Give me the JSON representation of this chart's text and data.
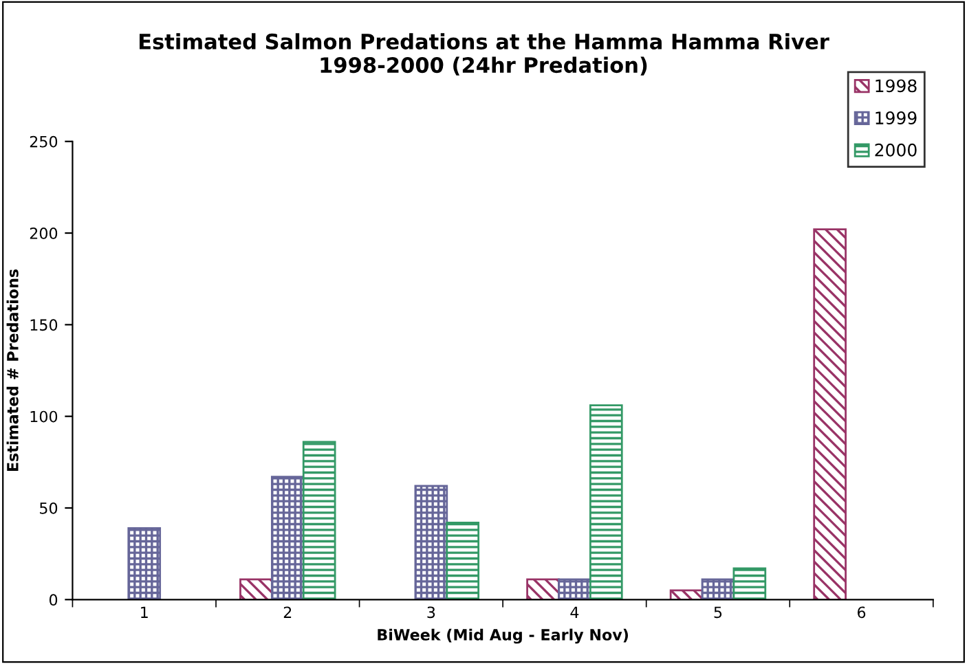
{
  "chart_data": {
    "type": "bar",
    "title": "Estimated Salmon Predations at the Hamma Hamma River\n1998-2000 (24hr Predation)",
    "xlabel": "BiWeek (Mid Aug - Early Nov)",
    "ylabel": "Estimated # Predations",
    "categories": [
      "1",
      "2",
      "3",
      "4",
      "5",
      "6"
    ],
    "series": [
      {
        "name": "1998",
        "color": "#993366",
        "values": [
          null,
          11,
          null,
          11,
          5,
          202
        ]
      },
      {
        "name": "1999",
        "color": "#666699",
        "values": [
          39,
          67,
          62,
          11,
          11,
          null
        ]
      },
      {
        "name": "2000",
        "color": "#339966",
        "values": [
          null,
          86,
          42,
          106,
          17,
          null
        ]
      }
    ],
    "ylim": [
      0,
      250
    ],
    "yticks": [
      0,
      50,
      100,
      150,
      200,
      250
    ],
    "grid": false,
    "legend": "top right"
  }
}
